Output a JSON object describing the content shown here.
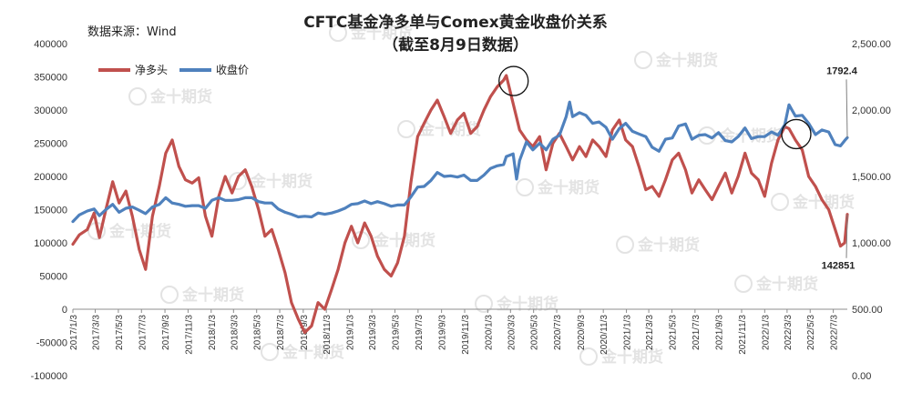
{
  "watermark_text": "金十期货",
  "chart_data": {
    "type": "line",
    "title": "CFTC基金净多单与Comex黄金收盘价关系",
    "subtitle": "（截至8月9日数据）",
    "source": "数据来源：Wind",
    "legend_position": "top-left",
    "grid": false,
    "left_axis": {
      "ylim": [
        -100000,
        400000
      ],
      "tick_values": [
        -100000,
        -50000,
        0,
        50000,
        100000,
        150000,
        200000,
        250000,
        300000,
        350000,
        400000
      ],
      "tick_labels": [
        "-100000",
        "-50000",
        "0",
        "50000",
        "100000",
        "150000",
        "200000",
        "250000",
        "300000",
        "350000",
        "400000"
      ]
    },
    "right_axis": {
      "ylim": [
        0,
        2500
      ],
      "tick_values": [
        0,
        500,
        1000,
        1500,
        2000,
        2500
      ],
      "tick_labels": [
        "0.00",
        "500.00",
        "1,000.00",
        "1,500.00",
        "2,000.00",
        "2,500.00"
      ]
    },
    "x_axis": {
      "start": "2017/1/3",
      "end": "2022/8/9",
      "tick_labels": [
        "2017/1/3",
        "2017/3/3",
        "2017/5/3",
        "2017/7/3",
        "2017/9/3",
        "2017/11/3",
        "2018/1/3",
        "2018/3/3",
        "2018/5/3",
        "2018/7/3",
        "2018/9/3",
        "2018/11/3",
        "2019/1/3",
        "2019/3/3",
        "2019/5/3",
        "2019/7/3",
        "2019/9/3",
        "2019/11/3",
        "2020/1/3",
        "2020/3/3",
        "2020/5/3",
        "2020/7/3",
        "2020/9/3",
        "2020/11/3",
        "2021/1/3",
        "2021/3/3",
        "2021/5/3",
        "2021/7/3",
        "2021/9/3",
        "2021/11/3",
        "2022/1/3",
        "2022/3/3",
        "2022/5/3",
        "2022/7/3"
      ]
    },
    "series": [
      {
        "name": "净多头",
        "axis": "left",
        "color": "#c0504d",
        "points": [
          [
            "2017/1/3",
            98000
          ],
          [
            "2017/1/20",
            112000
          ],
          [
            "2017/2/10",
            120000
          ],
          [
            "2017/2/28",
            145000
          ],
          [
            "2017/3/14",
            108000
          ],
          [
            "2017/3/31",
            150000
          ],
          [
            "2017/4/18",
            192000
          ],
          [
            "2017/5/5",
            160000
          ],
          [
            "2017/5/23",
            178000
          ],
          [
            "2017/6/9",
            140000
          ],
          [
            "2017/6/27",
            90000
          ],
          [
            "2017/7/14",
            60000
          ],
          [
            "2017/8/1",
            140000
          ],
          [
            "2017/8/19",
            185000
          ],
          [
            "2017/9/5",
            235000
          ],
          [
            "2017/9/22",
            255000
          ],
          [
            "2017/10/10",
            215000
          ],
          [
            "2017/10/27",
            195000
          ],
          [
            "2017/11/14",
            190000
          ],
          [
            "2017/12/1",
            198000
          ],
          [
            "2017/12/19",
            140000
          ],
          [
            "2018/1/5",
            110000
          ],
          [
            "2018/1/23",
            170000
          ],
          [
            "2018/2/9",
            200000
          ],
          [
            "2018/2/27",
            175000
          ],
          [
            "2018/3/16",
            200000
          ],
          [
            "2018/4/3",
            210000
          ],
          [
            "2018/4/20",
            185000
          ],
          [
            "2018/5/8",
            150000
          ],
          [
            "2018/5/25",
            110000
          ],
          [
            "2018/6/12",
            120000
          ],
          [
            "2018/6/29",
            90000
          ],
          [
            "2018/7/17",
            55000
          ],
          [
            "2018/8/3",
            10000
          ],
          [
            "2018/8/21",
            -15000
          ],
          [
            "2018/9/7",
            -35000
          ],
          [
            "2018/9/25",
            -25000
          ],
          [
            "2018/10/12",
            10000
          ],
          [
            "2018/10/30",
            0
          ],
          [
            "2018/11/17",
            30000
          ],
          [
            "2018/12/4",
            60000
          ],
          [
            "2018/12/22",
            100000
          ],
          [
            "2019/1/8",
            125000
          ],
          [
            "2019/1/25",
            100000
          ],
          [
            "2019/2/12",
            130000
          ],
          [
            "2019/3/1",
            110000
          ],
          [
            "2019/3/18",
            80000
          ],
          [
            "2019/4/5",
            60000
          ],
          [
            "2019/4/23",
            50000
          ],
          [
            "2019/5/10",
            70000
          ],
          [
            "2019/5/28",
            110000
          ],
          [
            "2019/6/14",
            190000
          ],
          [
            "2019/7/2",
            260000
          ],
          [
            "2019/7/19",
            280000
          ],
          [
            "2019/8/6",
            300000
          ],
          [
            "2019/8/23",
            315000
          ],
          [
            "2019/9/10",
            290000
          ],
          [
            "2019/9/27",
            265000
          ],
          [
            "2019/10/15",
            285000
          ],
          [
            "2019/11/1",
            295000
          ],
          [
            "2019/11/19",
            265000
          ],
          [
            "2019/12/6",
            275000
          ],
          [
            "2019/12/24",
            300000
          ],
          [
            "2020/1/10",
            320000
          ],
          [
            "2020/1/28",
            335000
          ],
          [
            "2020/2/14",
            345000
          ],
          [
            "2020/2/21",
            352000
          ],
          [
            "2020/3/10",
            310000
          ],
          [
            "2020/3/27",
            270000
          ],
          [
            "2020/4/14",
            255000
          ],
          [
            "2020/5/1",
            245000
          ],
          [
            "2020/5/19",
            260000
          ],
          [
            "2020/6/5",
            210000
          ],
          [
            "2020/6/23",
            250000
          ],
          [
            "2020/7/10",
            265000
          ],
          [
            "2020/7/28",
            245000
          ],
          [
            "2020/8/14",
            225000
          ],
          [
            "2020/9/1",
            245000
          ],
          [
            "2020/9/18",
            230000
          ],
          [
            "2020/10/6",
            255000
          ],
          [
            "2020/10/23",
            245000
          ],
          [
            "2020/11/10",
            230000
          ],
          [
            "2020/11/27",
            270000
          ],
          [
            "2020/12/15",
            285000
          ],
          [
            "2021/1/1",
            255000
          ],
          [
            "2021/1/19",
            245000
          ],
          [
            "2021/2/5",
            215000
          ],
          [
            "2021/2/23",
            180000
          ],
          [
            "2021/3/12",
            185000
          ],
          [
            "2021/3/30",
            170000
          ],
          [
            "2021/4/16",
            195000
          ],
          [
            "2021/5/4",
            225000
          ],
          [
            "2021/5/21",
            235000
          ],
          [
            "2021/6/8",
            210000
          ],
          [
            "2021/6/25",
            175000
          ],
          [
            "2021/7/13",
            195000
          ],
          [
            "2021/7/30",
            180000
          ],
          [
            "2021/8/17",
            165000
          ],
          [
            "2021/9/3",
            185000
          ],
          [
            "2021/9/21",
            205000
          ],
          [
            "2021/10/8",
            175000
          ],
          [
            "2021/10/25",
            200000
          ],
          [
            "2021/11/12",
            235000
          ],
          [
            "2021/11/29",
            205000
          ],
          [
            "2021/12/17",
            195000
          ],
          [
            "2022/1/3",
            170000
          ],
          [
            "2022/1/21",
            220000
          ],
          [
            "2022/2/7",
            255000
          ],
          [
            "2022/2/25",
            275000
          ],
          [
            "2022/3/8",
            272000
          ],
          [
            "2022/3/25",
            255000
          ],
          [
            "2022/4/12",
            240000
          ],
          [
            "2022/4/29",
            200000
          ],
          [
            "2022/5/17",
            185000
          ],
          [
            "2022/6/3",
            165000
          ],
          [
            "2022/6/21",
            150000
          ],
          [
            "2022/7/8",
            120000
          ],
          [
            "2022/7/22",
            95000
          ],
          [
            "2022/8/2",
            100000
          ],
          [
            "2022/8/9",
            142851
          ]
        ]
      },
      {
        "name": "收盘价",
        "axis": "right",
        "color": "#4f81bd",
        "points": [
          [
            "2017/1/3",
            1160
          ],
          [
            "2017/1/20",
            1210
          ],
          [
            "2017/2/10",
            1240
          ],
          [
            "2017/2/28",
            1255
          ],
          [
            "2017/3/14",
            1205
          ],
          [
            "2017/3/31",
            1250
          ],
          [
            "2017/4/18",
            1290
          ],
          [
            "2017/5/5",
            1230
          ],
          [
            "2017/5/23",
            1260
          ],
          [
            "2017/6/9",
            1270
          ],
          [
            "2017/6/27",
            1245
          ],
          [
            "2017/7/14",
            1220
          ],
          [
            "2017/8/1",
            1270
          ],
          [
            "2017/8/19",
            1290
          ],
          [
            "2017/9/5",
            1340
          ],
          [
            "2017/9/22",
            1300
          ],
          [
            "2017/10/10",
            1290
          ],
          [
            "2017/10/27",
            1275
          ],
          [
            "2017/11/14",
            1280
          ],
          [
            "2017/12/1",
            1280
          ],
          [
            "2017/12/19",
            1260
          ],
          [
            "2018/1/5",
            1320
          ],
          [
            "2018/1/23",
            1340
          ],
          [
            "2018/2/9",
            1320
          ],
          [
            "2018/2/27",
            1320
          ],
          [
            "2018/3/16",
            1325
          ],
          [
            "2018/4/3",
            1340
          ],
          [
            "2018/4/20",
            1340
          ],
          [
            "2018/5/8",
            1310
          ],
          [
            "2018/5/25",
            1300
          ],
          [
            "2018/6/12",
            1300
          ],
          [
            "2018/6/29",
            1255
          ],
          [
            "2018/7/17",
            1230
          ],
          [
            "2018/8/3",
            1215
          ],
          [
            "2018/8/21",
            1195
          ],
          [
            "2018/9/7",
            1200
          ],
          [
            "2018/9/25",
            1195
          ],
          [
            "2018/10/12",
            1225
          ],
          [
            "2018/10/30",
            1215
          ],
          [
            "2018/11/17",
            1225
          ],
          [
            "2018/12/4",
            1240
          ],
          [
            "2018/12/22",
            1260
          ],
          [
            "2019/1/8",
            1290
          ],
          [
            "2019/1/25",
            1295
          ],
          [
            "2019/2/12",
            1315
          ],
          [
            "2019/3/1",
            1295
          ],
          [
            "2019/3/18",
            1310
          ],
          [
            "2019/4/5",
            1295
          ],
          [
            "2019/4/23",
            1275
          ],
          [
            "2019/5/10",
            1285
          ],
          [
            "2019/5/28",
            1285
          ],
          [
            "2019/6/14",
            1345
          ],
          [
            "2019/7/2",
            1420
          ],
          [
            "2019/7/19",
            1425
          ],
          [
            "2019/8/6",
            1470
          ],
          [
            "2019/8/23",
            1530
          ],
          [
            "2019/9/10",
            1500
          ],
          [
            "2019/9/27",
            1505
          ],
          [
            "2019/10/15",
            1495
          ],
          [
            "2019/11/1",
            1510
          ],
          [
            "2019/11/19",
            1470
          ],
          [
            "2019/12/6",
            1470
          ],
          [
            "2019/12/24",
            1510
          ],
          [
            "2020/1/10",
            1560
          ],
          [
            "2020/1/28",
            1580
          ],
          [
            "2020/2/14",
            1590
          ],
          [
            "2020/2/21",
            1650
          ],
          [
            "2020/3/10",
            1670
          ],
          [
            "2020/3/19",
            1480
          ],
          [
            "2020/3/27",
            1620
          ],
          [
            "2020/4/14",
            1760
          ],
          [
            "2020/5/1",
            1700
          ],
          [
            "2020/5/19",
            1750
          ],
          [
            "2020/6/5",
            1700
          ],
          [
            "2020/6/23",
            1780
          ],
          [
            "2020/7/10",
            1810
          ],
          [
            "2020/7/28",
            1950
          ],
          [
            "2020/8/6",
            2060
          ],
          [
            "2020/8/14",
            1950
          ],
          [
            "2020/9/1",
            1980
          ],
          [
            "2020/9/18",
            1960
          ],
          [
            "2020/10/6",
            1900
          ],
          [
            "2020/10/23",
            1910
          ],
          [
            "2020/11/10",
            1870
          ],
          [
            "2020/11/27",
            1780
          ],
          [
            "2020/12/15",
            1860
          ],
          [
            "2021/1/1",
            1900
          ],
          [
            "2021/1/19",
            1840
          ],
          [
            "2021/2/5",
            1820
          ],
          [
            "2021/2/23",
            1800
          ],
          [
            "2021/3/12",
            1720
          ],
          [
            "2021/3/30",
            1690
          ],
          [
            "2021/4/16",
            1780
          ],
          [
            "2021/5/4",
            1790
          ],
          [
            "2021/5/21",
            1880
          ],
          [
            "2021/6/8",
            1895
          ],
          [
            "2021/6/25",
            1780
          ],
          [
            "2021/7/13",
            1810
          ],
          [
            "2021/7/30",
            1815
          ],
          [
            "2021/8/17",
            1790
          ],
          [
            "2021/9/3",
            1830
          ],
          [
            "2021/9/21",
            1770
          ],
          [
            "2021/10/8",
            1760
          ],
          [
            "2021/10/25",
            1800
          ],
          [
            "2021/11/12",
            1865
          ],
          [
            "2021/11/29",
            1785
          ],
          [
            "2021/12/17",
            1800
          ],
          [
            "2022/1/3",
            1800
          ],
          [
            "2022/1/21",
            1835
          ],
          [
            "2022/2/7",
            1810
          ],
          [
            "2022/2/25",
            1890
          ],
          [
            "2022/3/8",
            2040
          ],
          [
            "2022/3/25",
            1955
          ],
          [
            "2022/4/12",
            1960
          ],
          [
            "2022/4/29",
            1900
          ],
          [
            "2022/5/17",
            1815
          ],
          [
            "2022/6/3",
            1850
          ],
          [
            "2022/6/21",
            1835
          ],
          [
            "2022/7/8",
            1740
          ],
          [
            "2022/7/22",
            1730
          ],
          [
            "2022/8/2",
            1770
          ],
          [
            "2022/8/9",
            1792.4
          ]
        ]
      }
    ],
    "annotations": [
      {
        "text": "1792.4",
        "series": "收盘价",
        "date": "2022/8/9"
      },
      {
        "text": "142851",
        "series": "净多头",
        "date": "2022/8/9"
      }
    ],
    "highlights": [
      {
        "series": "净多头",
        "date": "2020/2/21"
      },
      {
        "series": "净多头",
        "date": "2022/3/8"
      }
    ]
  }
}
